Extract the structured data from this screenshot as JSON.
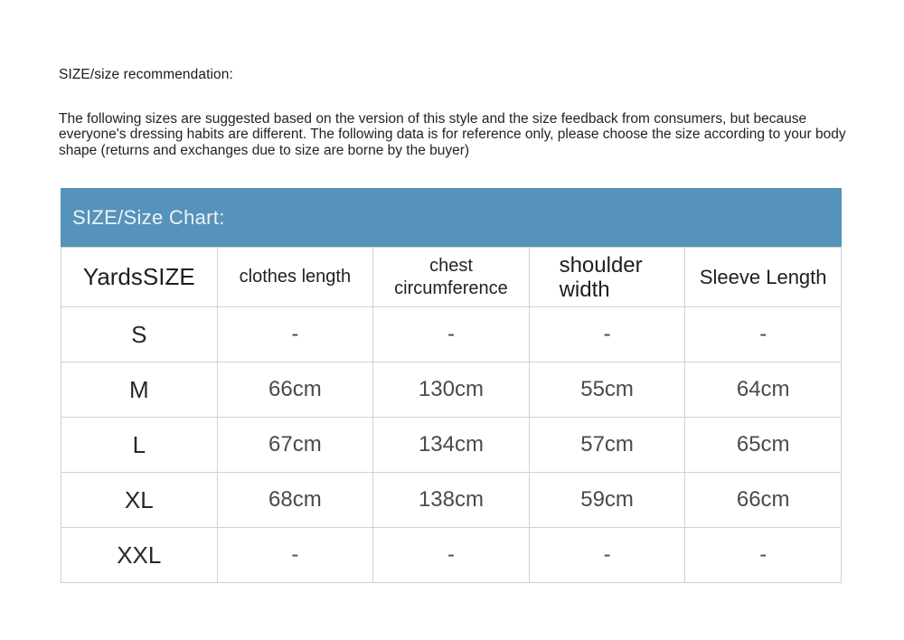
{
  "page": {
    "heading": "SIZE/size recommendation:",
    "description": "The following sizes are suggested based on the version of this style and the size feedback from consumers, but because everyone's dressing habits are different. The following data is for reference only, please choose the size according to your body shape (returns and exchanges due to size are borne by the buyer)"
  },
  "colors": {
    "accent_blue": "#5593BA",
    "table_border": "#d1d1d1",
    "title_text": "#edf2f6"
  },
  "size_chart": {
    "title": "SIZE/Size Chart:",
    "columns": [
      "YardsSIZE",
      "clothes length",
      "chest circumference",
      "shoulder width",
      "Sleeve Length"
    ],
    "rows": [
      [
        "S",
        "-",
        "-",
        "-",
        "-"
      ],
      [
        "M",
        "66cm",
        "130cm",
        "55cm",
        "64cm"
      ],
      [
        "L",
        "67cm",
        "134cm",
        "57cm",
        "65cm"
      ],
      [
        "XL",
        "68cm",
        "138cm",
        "59cm",
        "66cm"
      ],
      [
        "XXL",
        "-",
        "-",
        "-",
        "-"
      ]
    ]
  }
}
